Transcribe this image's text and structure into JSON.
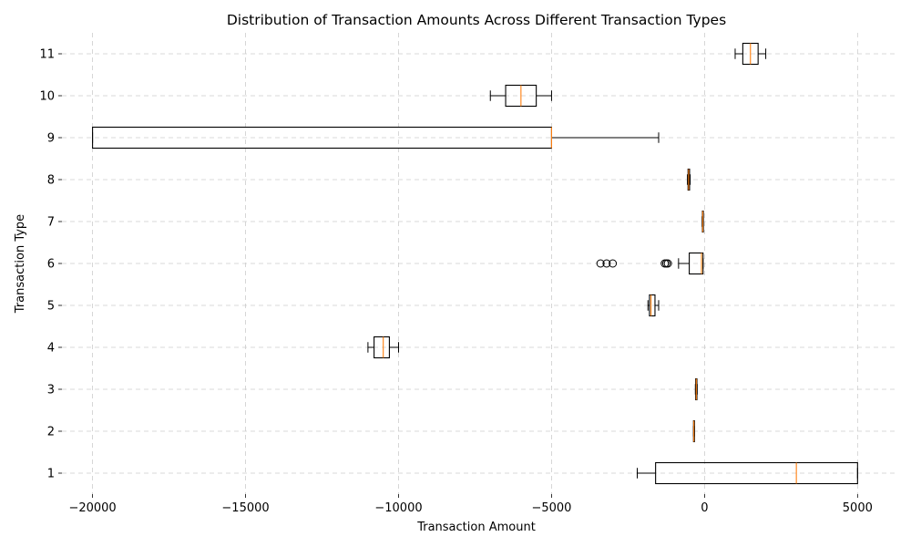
{
  "chart_data": {
    "type": "boxplot",
    "orientation": "horizontal",
    "title": "Distribution of Transaction Amounts Across Different Transaction Types",
    "xlabel": "Transaction Amount",
    "ylabel": "Transaction Type",
    "xlim": [
      -21000,
      6300
    ],
    "ylim": [
      0.5,
      11.5
    ],
    "xticks": [
      -20000,
      -15000,
      -10000,
      -5000,
      0,
      5000
    ],
    "xtick_labels": [
      "−20000",
      "−15000",
      "−10000",
      "−5000",
      "0",
      "5000"
    ],
    "categories": [
      "1",
      "2",
      "3",
      "4",
      "5",
      "6",
      "7",
      "8",
      "9",
      "10",
      "11"
    ],
    "grid": true,
    "grid_style": "dashed",
    "colors": {
      "box": "#000000",
      "median": "#ff7f0e",
      "grid": "#cccccc"
    },
    "boxes": [
      {
        "category": "1",
        "whisker_low": -2200,
        "q1": -1600,
        "median": 3000,
        "q3": 5000,
        "whisker_high": 5000,
        "outliers": []
      },
      {
        "category": "2",
        "whisker_low": -360,
        "q1": -360,
        "median": -350,
        "q3": -330,
        "whisker_high": -330,
        "outliers": []
      },
      {
        "category": "3",
        "whisker_low": -300,
        "q1": -290,
        "median": -270,
        "q3": -250,
        "whisker_high": -240,
        "outliers": []
      },
      {
        "category": "4",
        "whisker_low": -11000,
        "q1": -10800,
        "median": -10500,
        "q3": -10300,
        "whisker_high": -10000,
        "outliers": []
      },
      {
        "category": "5",
        "whisker_low": -1850,
        "q1": -1800,
        "median": -1750,
        "q3": -1620,
        "whisker_high": -1500,
        "outliers": []
      },
      {
        "category": "6",
        "whisker_low": -850,
        "q1": -500,
        "median": -100,
        "q3": -50,
        "whisker_high": -50,
        "outliers": [
          -3400,
          -3200,
          -3000,
          -1300,
          -1250,
          -1200
        ]
      },
      {
        "category": "7",
        "whisker_low": -80,
        "q1": -70,
        "median": -60,
        "q3": -50,
        "whisker_high": -40,
        "outliers": []
      },
      {
        "category": "8",
        "whisker_low": -560,
        "q1": -540,
        "median": -520,
        "q3": -490,
        "whisker_high": -470,
        "outliers": []
      },
      {
        "category": "9",
        "whisker_low": -20000,
        "q1": -20000,
        "median": -5000,
        "q3": -5000,
        "whisker_high": -1500,
        "outliers": []
      },
      {
        "category": "10",
        "whisker_low": -7000,
        "q1": -6500,
        "median": -6000,
        "q3": -5500,
        "whisker_high": -5000,
        "outliers": []
      },
      {
        "category": "11",
        "whisker_low": 1000,
        "q1": 1250,
        "median": 1500,
        "q3": 1750,
        "whisker_high": 2000,
        "outliers": []
      }
    ]
  }
}
